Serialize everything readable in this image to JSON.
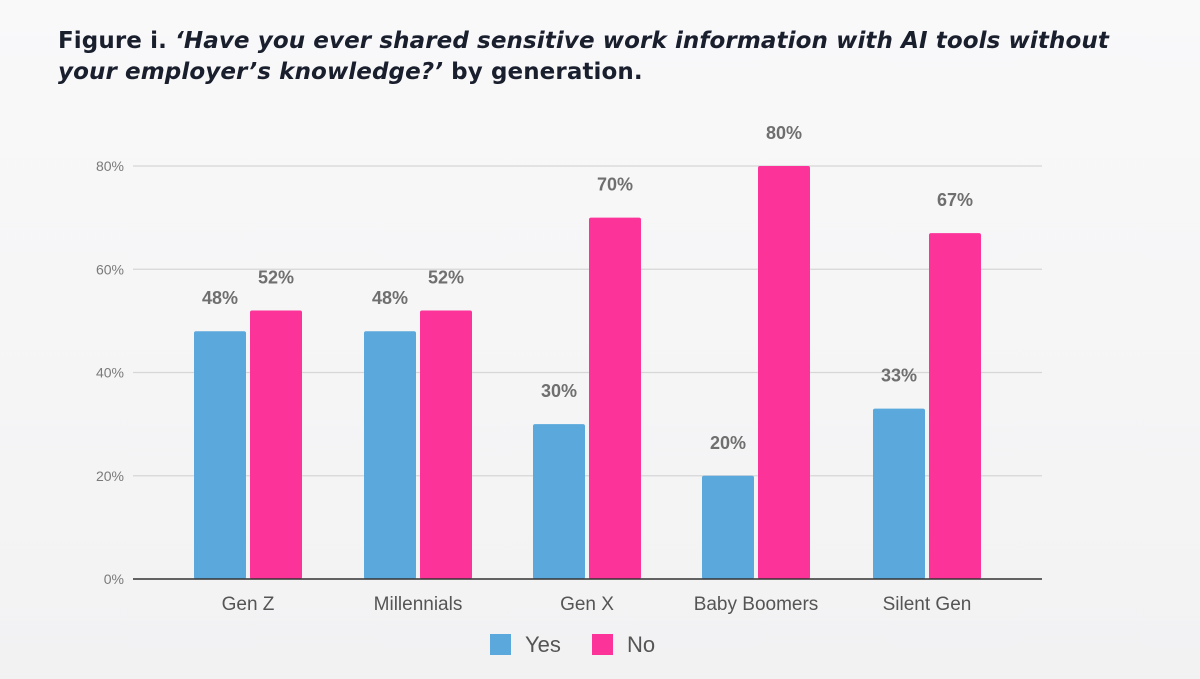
{
  "figure": {
    "title_prefix": "Figure i. ",
    "title_question": "‘Have you ever shared sensitive work information with AI tools without your employer’s knowledge?’",
    "title_suffix": " by generation."
  },
  "colors": {
    "yes": "#5aa8dc",
    "no": "#fc3398",
    "grid": "#d6d6d6",
    "axis": "#333333"
  },
  "chart_data": {
    "type": "bar",
    "categories": [
      "Gen Z",
      "Millennials",
      "Gen X",
      "Baby Boomers",
      "Silent Gen"
    ],
    "series": [
      {
        "name": "Yes",
        "values": [
          48,
          48,
          30,
          20,
          33
        ],
        "labels": [
          "48%",
          "48%",
          "30%",
          "20%",
          "33%"
        ]
      },
      {
        "name": "No",
        "values": [
          52,
          52,
          70,
          80,
          67
        ],
        "labels": [
          "52%",
          "52%",
          "70%",
          "80%",
          "67%"
        ]
      }
    ],
    "yticks": [
      "0%",
      "20%",
      "40%",
      "60%",
      "80%"
    ],
    "ytick_values": [
      0,
      20,
      40,
      60,
      80
    ],
    "ylim": [
      0,
      80
    ],
    "grid": true,
    "legend_position": "bottom-center",
    "xlabel": "",
    "ylabel": ""
  }
}
